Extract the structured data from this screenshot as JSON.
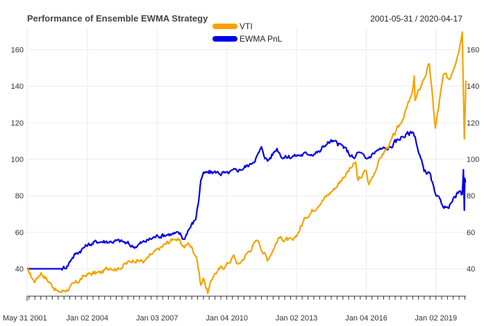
{
  "chart_data": {
    "type": "line",
    "title": "Performance of Ensemble EWMA Strategy",
    "date_range": "2001-05-31 / 2020-04-17",
    "xlabel": "",
    "ylabel": "",
    "xlim": [
      "2001-05-31",
      "2020-04-17"
    ],
    "ylim": [
      25,
      172
    ],
    "y_ticks": [
      40,
      60,
      80,
      100,
      120,
      140,
      160
    ],
    "x_tick_labels": [
      {
        "date": "2001-05-31",
        "label": "May 31 2001"
      },
      {
        "date": "2004-01-02",
        "label": "Jan 02 2004"
      },
      {
        "date": "2007-01-03",
        "label": "Jan 03 2007"
      },
      {
        "date": "2010-01-04",
        "label": "Jan 04 2010"
      },
      {
        "date": "2013-01-02",
        "label": "Jan 02 2013"
      },
      {
        "date": "2016-01-04",
        "label": "Jan 04 2016"
      },
      {
        "date": "2019-01-02",
        "label": "Jan 02 2019"
      }
    ],
    "grid": true,
    "legend_position": "top-center",
    "series": [
      {
        "name": "VTI",
        "color": "#f5a300",
        "points": [
          [
            "2001-05-31",
            40
          ],
          [
            "2001-09-21",
            33
          ],
          [
            "2002-01-04",
            38
          ],
          [
            "2002-07-23",
            30
          ],
          [
            "2002-10-09",
            27
          ],
          [
            "2003-03-11",
            29
          ],
          [
            "2003-12-31",
            37
          ],
          [
            "2004-08-13",
            38
          ],
          [
            "2004-12-31",
            41
          ],
          [
            "2005-04-20",
            40
          ],
          [
            "2005-12-30",
            45
          ],
          [
            "2006-06-13",
            44
          ],
          [
            "2006-12-29",
            50
          ],
          [
            "2007-10-09",
            57
          ],
          [
            "2008-03-10",
            52
          ],
          [
            "2008-05-19",
            54
          ],
          [
            "2008-09-15",
            47
          ],
          [
            "2008-11-20",
            31
          ],
          [
            "2009-01-06",
            35
          ],
          [
            "2009-03-09",
            27
          ],
          [
            "2009-06-12",
            37
          ],
          [
            "2010-01-19",
            43
          ],
          [
            "2010-04-23",
            47
          ],
          [
            "2010-07-02",
            42
          ],
          [
            "2011-04-29",
            56
          ],
          [
            "2011-10-03",
            45
          ],
          [
            "2012-03-30",
            57
          ],
          [
            "2012-11-15",
            55
          ],
          [
            "2013-05-21",
            68
          ],
          [
            "2013-12-31",
            76
          ],
          [
            "2014-09-18",
            85
          ],
          [
            "2014-12-31",
            90
          ],
          [
            "2015-07-20",
            98
          ],
          [
            "2015-08-25",
            88
          ],
          [
            "2015-12-31",
            94
          ],
          [
            "2016-02-11",
            86
          ],
          [
            "2016-08-15",
            101
          ],
          [
            "2016-12-30",
            108
          ],
          [
            "2017-06-30",
            120
          ],
          [
            "2017-12-29",
            136
          ],
          [
            "2018-01-26",
            146
          ],
          [
            "2018-02-08",
            132
          ],
          [
            "2018-09-20",
            152
          ],
          [
            "2018-12-24",
            117
          ],
          [
            "2019-04-30",
            146
          ],
          [
            "2019-08-05",
            144
          ],
          [
            "2019-12-31",
            160
          ],
          [
            "2020-02-19",
            171
          ],
          [
            "2020-03-23",
            112
          ],
          [
            "2020-04-17",
            143
          ]
        ]
      },
      {
        "name": "EWMA PnL",
        "color": "#0000e6",
        "points": [
          [
            "2001-05-31",
            40
          ],
          [
            "2002-12-02",
            40
          ],
          [
            "2003-03-03",
            42
          ],
          [
            "2003-05-01",
            46
          ],
          [
            "2003-07-01",
            48
          ],
          [
            "2003-12-31",
            53
          ],
          [
            "2004-06-30",
            55
          ],
          [
            "2005-01-03",
            55
          ],
          [
            "2005-07-01",
            55
          ],
          [
            "2006-01-03",
            52
          ],
          [
            "2006-06-30",
            55
          ],
          [
            "2007-01-03",
            58
          ],
          [
            "2007-06-29",
            59
          ],
          [
            "2007-12-31",
            59
          ],
          [
            "2008-02-29",
            56
          ],
          [
            "2008-04-30",
            61
          ],
          [
            "2008-08-29",
            67
          ],
          [
            "2008-10-15",
            77
          ],
          [
            "2008-11-21",
            89
          ],
          [
            "2008-12-31",
            92
          ],
          [
            "2009-06-30",
            93
          ],
          [
            "2009-12-31",
            92
          ],
          [
            "2010-06-30",
            94
          ],
          [
            "2010-12-31",
            97
          ],
          [
            "2011-04-29",
            102
          ],
          [
            "2011-07-01",
            106
          ],
          [
            "2011-10-03",
            99
          ],
          [
            "2012-03-01",
            106
          ],
          [
            "2012-06-01",
            101
          ],
          [
            "2012-12-31",
            102
          ],
          [
            "2013-06-28",
            103
          ],
          [
            "2013-12-31",
            104
          ],
          [
            "2014-04-01",
            108
          ],
          [
            "2014-06-30",
            110
          ],
          [
            "2014-12-31",
            107
          ],
          [
            "2015-06-30",
            100
          ],
          [
            "2015-08-25",
            104
          ],
          [
            "2015-12-31",
            100
          ],
          [
            "2016-06-30",
            105
          ],
          [
            "2016-12-30",
            106
          ],
          [
            "2017-06-30",
            112
          ],
          [
            "2017-12-29",
            115
          ],
          [
            "2018-02-08",
            113
          ],
          [
            "2018-03-30",
            104
          ],
          [
            "2018-06-29",
            94
          ],
          [
            "2018-09-28",
            92
          ],
          [
            "2018-12-24",
            80
          ],
          [
            "2019-03-29",
            76
          ],
          [
            "2019-06-28",
            73
          ],
          [
            "2019-12-31",
            82
          ],
          [
            "2020-02-19",
            80
          ],
          [
            "2020-03-09",
            95
          ],
          [
            "2020-03-23",
            72
          ],
          [
            "2020-03-31",
            89
          ],
          [
            "2020-04-17",
            88
          ]
        ]
      }
    ]
  }
}
